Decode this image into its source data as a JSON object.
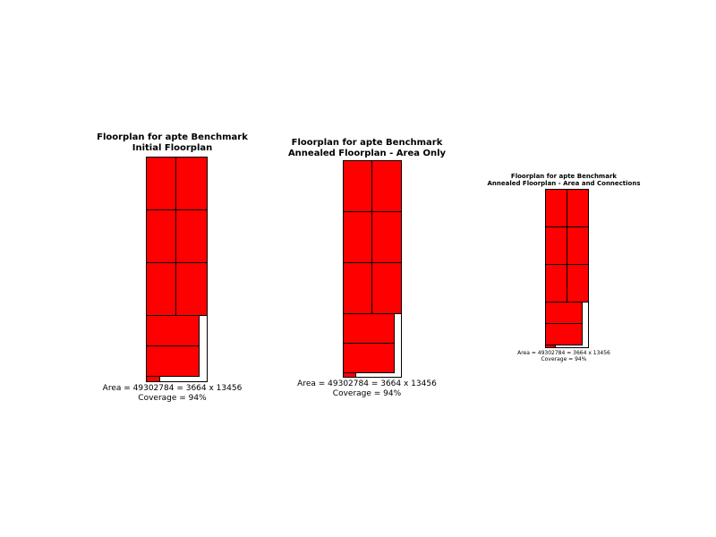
{
  "panels": [
    {
      "title_line1": "Floorplan for apte Benchmark",
      "title_line2": "Initial Floorplan",
      "area_text": "Area = 49302784 = 3664 x 13456",
      "coverage_text": "Coverage = 94%"
    },
    {
      "title_line1": "Floorplan for apte Benchmark",
      "title_line2": "Annealed Floorplan - Area Only",
      "area_text": "Area = 49302784 = 3664 x 13456",
      "coverage_text": "Coverage = 94%"
    },
    {
      "title_line1": "Floorplan for apte Benchmark",
      "title_line2": "Annealed Floorplan - Area and Connections",
      "area_text": "Area = 49302784 = 3664 x 13456",
      "coverage_text": "Coverage = 94%"
    }
  ],
  "colors": {
    "block_fill": "#ff0000",
    "block_stroke": "#000000",
    "outline_stroke": "#000000",
    "background": "#ffffff"
  }
}
